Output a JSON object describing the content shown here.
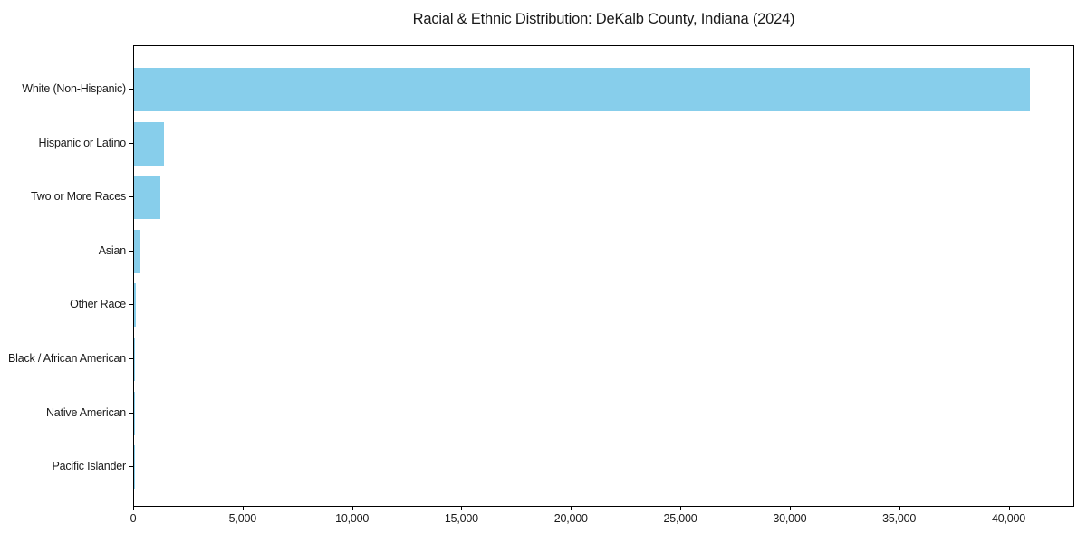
{
  "title": "Racial & Ethnic Distribution: DeKalb County, Indiana (2024)",
  "chart_data": {
    "type": "bar",
    "orientation": "horizontal",
    "title": "Racial & Ethnic Distribution: DeKalb County, Indiana (2024)",
    "xlabel": "",
    "ylabel": "",
    "categories": [
      "White (Non-Hispanic)",
      "Hispanic or Latino",
      "Two or More Races",
      "Asian",
      "Other Race",
      "Black / African American",
      "Native American",
      "Pacific Islander"
    ],
    "values": [
      41000,
      1360,
      1190,
      290,
      75,
      50,
      25,
      10
    ],
    "xlim": [
      0,
      43000
    ],
    "xticks": [
      0,
      5000,
      10000,
      15000,
      20000,
      25000,
      30000,
      35000,
      40000
    ],
    "xtick_labels": [
      "0",
      "5,000",
      "10,000",
      "15,000",
      "20,000",
      "25,000",
      "30,000",
      "35,000",
      "40,000"
    ],
    "bar_color": "#87CEEB",
    "frame_color": "#000000",
    "text_color": "#1a1a1a",
    "grid": false,
    "legend": null
  }
}
